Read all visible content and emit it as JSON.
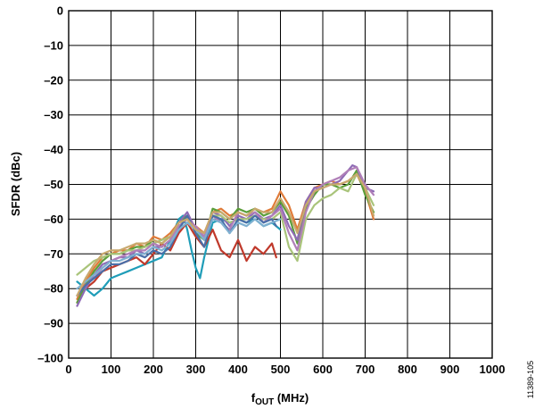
{
  "chart_data": {
    "type": "line",
    "xlabel_main": "f",
    "xlabel_sub": "OUT",
    "xlabel_unit": " (MHz)",
    "ylabel": "SFDR (dBc)",
    "figure_id": "11389-105",
    "xlim": [
      0,
      1000
    ],
    "ylim": [
      -100,
      0
    ],
    "x_ticks": [
      0,
      100,
      200,
      300,
      400,
      500,
      600,
      700,
      800,
      900,
      1000
    ],
    "y_ticks": [
      0,
      -10,
      -20,
      -30,
      -40,
      -50,
      -60,
      -70,
      -80,
      -90,
      -100
    ],
    "x_tick_labels": [
      "0",
      "100",
      "200",
      "300",
      "400",
      "500",
      "600",
      "700",
      "800",
      "900",
      "1000"
    ],
    "y_tick_labels": [
      "0",
      "–10",
      "–20",
      "–30",
      "–40",
      "–50",
      "–60",
      "–70",
      "–80",
      "–90",
      "–100"
    ],
    "grid": true,
    "legend": "none",
    "series": [
      {
        "color": "#1f9db8",
        "x": [
          20,
          40,
          60,
          80,
          100,
          120,
          140,
          160,
          180,
          200,
          220,
          240,
          260,
          270,
          280,
          290,
          300,
          310,
          320,
          340,
          360,
          380,
          400,
          420,
          440,
          460,
          480,
          500
        ],
        "y": [
          -78,
          -80,
          -82,
          -80,
          -77,
          -76,
          -75,
          -74,
          -73,
          -72,
          -71,
          -66,
          -60,
          -59,
          -63,
          -69,
          -74,
          -77,
          -71,
          -61,
          -60,
          -61,
          -60,
          -61,
          -60,
          -62,
          -61,
          -63
        ]
      },
      {
        "color": "#c0392b",
        "x": [
          20,
          40,
          60,
          80,
          100,
          120,
          140,
          160,
          180,
          200,
          220,
          240,
          260,
          280,
          300,
          320,
          340,
          360,
          380,
          400,
          420,
          440,
          460,
          480,
          490
        ],
        "y": [
          -84,
          -80,
          -78,
          -75,
          -74,
          -73,
          -72,
          -71,
          -73,
          -70,
          -67,
          -69,
          -64,
          -61,
          -65,
          -68,
          -63,
          -69,
          -71,
          -66,
          -72,
          -68,
          -70,
          -67,
          -71
        ]
      },
      {
        "color": "#e07b39",
        "x": [
          20,
          40,
          60,
          80,
          100,
          120,
          140,
          160,
          180,
          200,
          220,
          240,
          260,
          280,
          300,
          320,
          340,
          360,
          380,
          400,
          420,
          440,
          460,
          480,
          500,
          520,
          540,
          560,
          580,
          600,
          620,
          640,
          660,
          680,
          700,
          720
        ],
        "y": [
          -83,
          -78,
          -74,
          -71,
          -70,
          -69,
          -69,
          -67,
          -68,
          -65,
          -66,
          -64,
          -61,
          -60,
          -62,
          -64,
          -58,
          -57,
          -59,
          -58,
          -59,
          -57,
          -58,
          -57,
          -52,
          -56,
          -63,
          -55,
          -51,
          -50,
          -49,
          -50,
          -49,
          -47,
          -52,
          -60
        ]
      },
      {
        "color": "#5b9e3a",
        "x": [
          20,
          40,
          60,
          80,
          100,
          120,
          140,
          160,
          180,
          200,
          220,
          240,
          260,
          280,
          300,
          320,
          340,
          360,
          380,
          400,
          420,
          440,
          460,
          480,
          500,
          520,
          540,
          560,
          580,
          600,
          620,
          640,
          660,
          680,
          700,
          720
        ],
        "y": [
          -84,
          -79,
          -75,
          -72,
          -70,
          -70,
          -69,
          -68,
          -68,
          -66,
          -67,
          -65,
          -61,
          -59,
          -64,
          -66,
          -57,
          -58,
          -60,
          -57,
          -58,
          -57,
          -59,
          -58,
          -55,
          -59,
          -67,
          -57,
          -53,
          -50,
          -50,
          -51,
          -50,
          -46,
          -53,
          -58
        ]
      },
      {
        "color": "#8e6bb5",
        "x": [
          20,
          40,
          60,
          80,
          100,
          120,
          140,
          160,
          180,
          200,
          220,
          240,
          260,
          280,
          300,
          320,
          340,
          360,
          380,
          400,
          420,
          440,
          460,
          480,
          500,
          520,
          540,
          560,
          580,
          600,
          620,
          640,
          660,
          670,
          680,
          700,
          720
        ],
        "y": [
          -85,
          -80,
          -76,
          -73,
          -72,
          -71,
          -71,
          -69,
          -70,
          -68,
          -68,
          -66,
          -61,
          -58,
          -63,
          -65,
          -58,
          -59,
          -62,
          -59,
          -60,
          -58,
          -60,
          -59,
          -56,
          -62,
          -66,
          -55,
          -51,
          -51,
          -50,
          -49,
          -46,
          -44.5,
          -45,
          -51,
          -52
        ]
      },
      {
        "color": "#a9c47a",
        "x": [
          20,
          40,
          60,
          80,
          100,
          120,
          140,
          160,
          180,
          200,
          220,
          240,
          260,
          280,
          300,
          320,
          340,
          360,
          380,
          400,
          420,
          440,
          460,
          480,
          500,
          520,
          540,
          560,
          580,
          600,
          620,
          640,
          660,
          680,
          700,
          720
        ],
        "y": [
          -76,
          -74,
          -72,
          -71,
          -70,
          -70,
          -69,
          -69,
          -68,
          -67,
          -66,
          -65,
          -62,
          -60,
          -63,
          -64,
          -59,
          -59,
          -61,
          -60,
          -60,
          -59,
          -60,
          -60,
          -58,
          -68,
          -72,
          -60,
          -56,
          -54,
          -53,
          -51,
          -52,
          -47,
          -51,
          -56
        ]
      },
      {
        "color": "#b07fb8",
        "x": [
          20,
          40,
          60,
          80,
          100,
          120,
          140,
          160,
          180,
          200,
          220,
          240,
          260,
          280,
          300,
          320,
          340,
          360,
          380,
          400,
          420,
          440,
          460,
          480,
          500,
          520,
          540,
          560,
          580,
          600,
          620,
          640,
          660,
          680,
          700,
          720
        ],
        "y": [
          -82,
          -79,
          -77,
          -74,
          -72,
          -71,
          -70,
          -69,
          -69,
          -67,
          -68,
          -66,
          -62,
          -60,
          -62,
          -65,
          -59,
          -61,
          -63,
          -58,
          -59,
          -58,
          -61,
          -59,
          -57,
          -64,
          -69,
          -58,
          -52,
          -50,
          -49,
          -48,
          -46,
          -45,
          -50,
          -53
        ]
      },
      {
        "color": "#4a6fa8",
        "x": [
          20,
          40,
          60,
          80,
          100,
          120,
          140,
          160,
          180,
          200,
          220,
          240,
          260,
          280,
          300,
          320,
          340,
          360,
          380,
          400,
          420,
          440,
          460,
          480,
          490
        ],
        "y": [
          -82,
          -79,
          -77,
          -75,
          -73,
          -73,
          -72,
          -70,
          -71,
          -69,
          -70,
          -68,
          -63,
          -59,
          -64,
          -68,
          -59,
          -60,
          -64,
          -60,
          -61,
          -59,
          -61,
          -60,
          -62
        ]
      },
      {
        "color": "#7fb0d0",
        "x": [
          20,
          40,
          60,
          80,
          100,
          120,
          140,
          160,
          180,
          200,
          220,
          240,
          260,
          280,
          300,
          320,
          340,
          360,
          380,
          400,
          420,
          440,
          460,
          480,
          500
        ],
        "y": [
          -80,
          -78,
          -76,
          -74,
          -72,
          -72,
          -71,
          -70,
          -70,
          -68,
          -69,
          -67,
          -63,
          -61,
          -63,
          -66,
          -60,
          -61,
          -64,
          -61,
          -62,
          -60,
          -62,
          -61,
          -60
        ]
      },
      {
        "color": "#c8a96e",
        "x": [
          20,
          40,
          60,
          80,
          100,
          120,
          140,
          160,
          180,
          200,
          220,
          240,
          260,
          280,
          300,
          320,
          340,
          360,
          380,
          400,
          420,
          440,
          460,
          480,
          500,
          520,
          540,
          560,
          580,
          600,
          620,
          640,
          660,
          680,
          700,
          720
        ],
        "y": [
          -82,
          -77,
          -73,
          -70,
          -69,
          -69,
          -68,
          -67,
          -67,
          -66,
          -67,
          -65,
          -61,
          -60,
          -63,
          -64,
          -58,
          -58,
          -60,
          -58,
          -59,
          -57,
          -58,
          -58,
          -54,
          -58,
          -64,
          -56,
          -52,
          -51,
          -50,
          -50,
          -49,
          -47,
          -51,
          -59
        ]
      }
    ]
  }
}
